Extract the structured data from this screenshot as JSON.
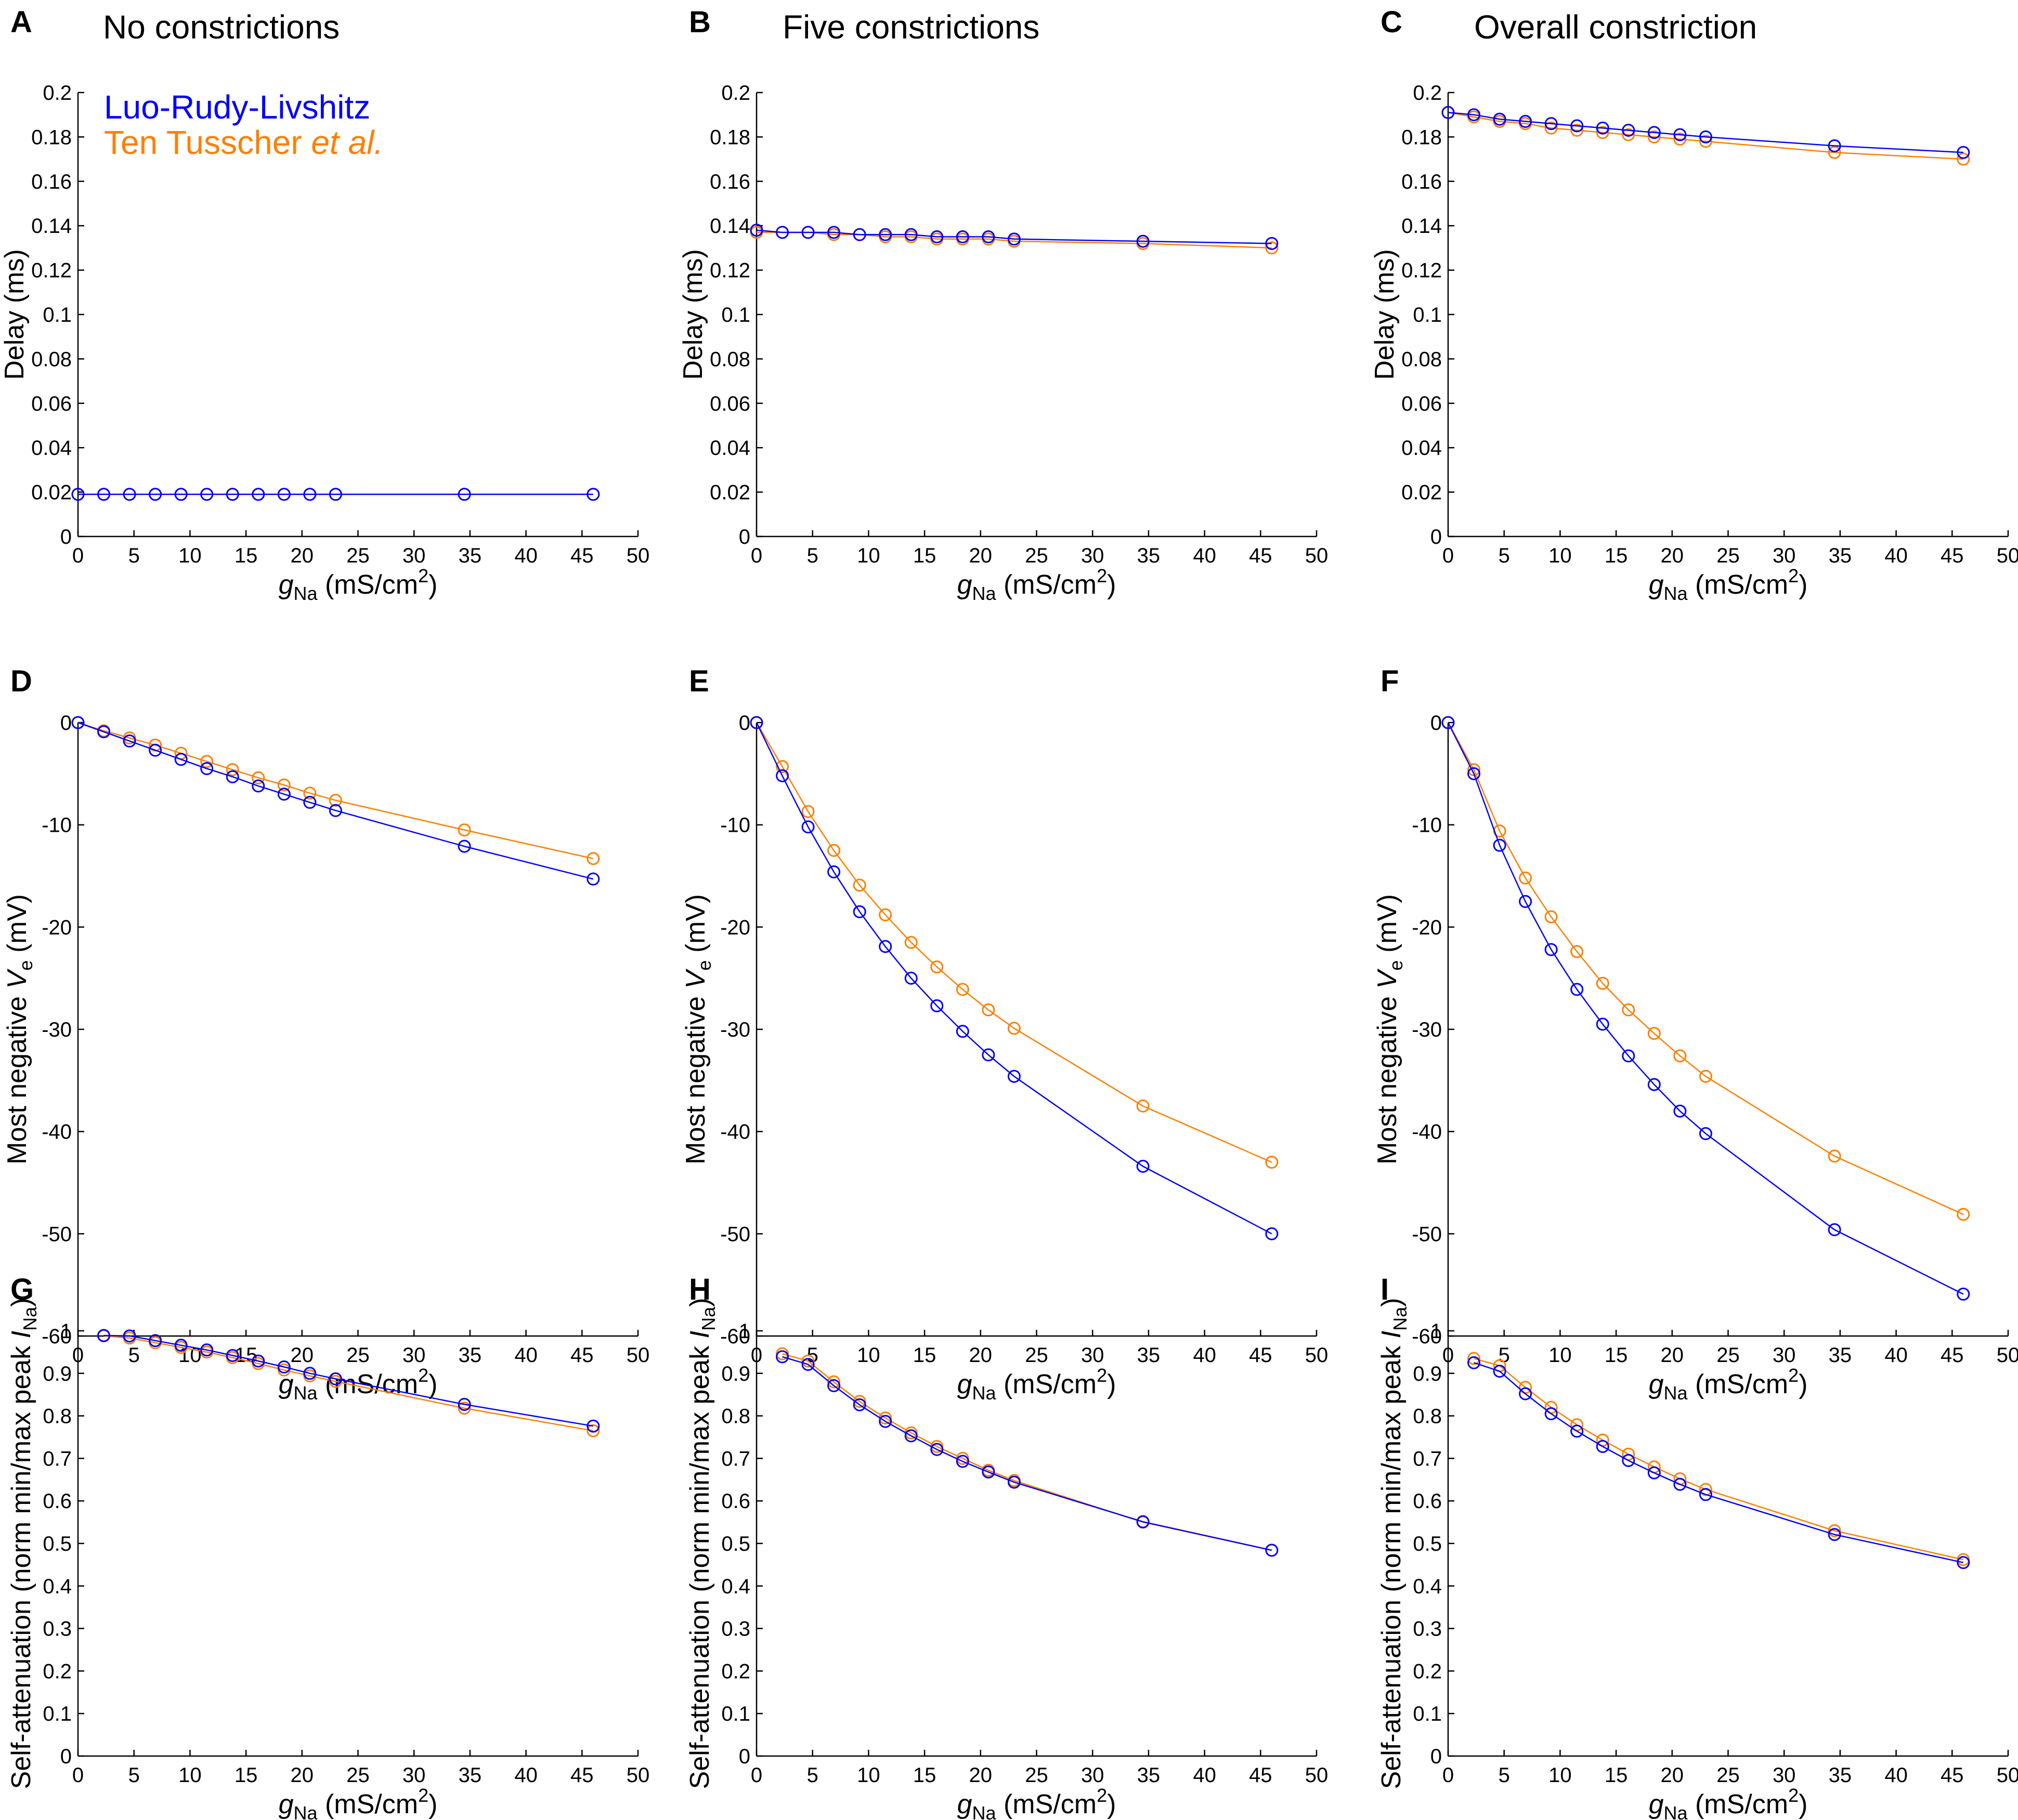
{
  "colors": {
    "lrl": "#0000ff",
    "tt": "#ff7f00",
    "axis": "#000000"
  },
  "legend": {
    "lrl": "Luo-Rudy-Livshitz",
    "tt_prefix": "Ten Tusscher ",
    "tt_suffix": "et al."
  },
  "axis_text": {
    "x_main": "g",
    "x_sub": "Na",
    "x_rest": " (mS/cm",
    "x_sup": "2",
    "x_close": ")",
    "delay": "Delay (ms)",
    "ve_prefix": "Most negative ",
    "ve_var": "V",
    "ve_sub": "e",
    "ve_suffix": " (mV)",
    "sa_prefix": "Self-attenuation (norm min/max peak ",
    "sa_var": "I",
    "sa_sub": "Na",
    "sa_suffix": ")"
  },
  "chart_data": [
    {
      "panel": "A",
      "title": "No constrictions",
      "type": "line",
      "ylabel_kind": "delay",
      "xlim": [
        0,
        50
      ],
      "ylim": [
        0,
        0.2
      ],
      "xticks": [
        "0",
        "5",
        "10",
        "15",
        "20",
        "25",
        "30",
        "35",
        "40",
        "45",
        "50"
      ],
      "yticks": [
        "0",
        "0.02",
        "0.04",
        "0.06",
        "0.08",
        "0.1",
        "0.12",
        "0.14",
        "0.16",
        "0.18",
        "0.2"
      ],
      "x": [
        0,
        2.3,
        4.6,
        6.9,
        9.2,
        11.5,
        13.8,
        16.1,
        18.4,
        20.7,
        23,
        34.5,
        46
      ],
      "series": [
        {
          "name": "Ten Tusscher et al.",
          "color_key": "tt",
          "values": [
            0.019,
            0.019,
            0.019,
            0.019,
            0.019,
            0.019,
            0.019,
            0.019,
            0.019,
            0.019,
            0.019,
            0.019,
            0.019
          ]
        },
        {
          "name": "Luo-Rudy-Livshitz",
          "color_key": "lrl",
          "values": [
            0.019,
            0.019,
            0.019,
            0.019,
            0.019,
            0.019,
            0.019,
            0.019,
            0.019,
            0.019,
            0.019,
            0.019,
            0.019
          ]
        }
      ]
    },
    {
      "panel": "B",
      "title": "Five constrictions",
      "type": "line",
      "ylabel_kind": "delay",
      "xlim": [
        0,
        50
      ],
      "ylim": [
        0,
        0.2
      ],
      "xticks": [
        "0",
        "5",
        "10",
        "15",
        "20",
        "25",
        "30",
        "35",
        "40",
        "45",
        "50"
      ],
      "yticks": [
        "0",
        "0.02",
        "0.04",
        "0.06",
        "0.08",
        "0.1",
        "0.12",
        "0.14",
        "0.16",
        "0.18",
        "0.2"
      ],
      "x": [
        0,
        2.3,
        4.6,
        6.9,
        9.2,
        11.5,
        13.8,
        16.1,
        18.4,
        20.7,
        23,
        34.5,
        46
      ],
      "series": [
        {
          "name": "Ten Tusscher et al.",
          "color_key": "tt",
          "values": [
            0.137,
            0.137,
            0.137,
            0.136,
            0.136,
            0.135,
            0.135,
            0.134,
            0.134,
            0.134,
            0.133,
            0.132,
            0.13
          ]
        },
        {
          "name": "Luo-Rudy-Livshitz",
          "color_key": "lrl",
          "values": [
            0.138,
            0.137,
            0.137,
            0.137,
            0.136,
            0.136,
            0.136,
            0.135,
            0.135,
            0.135,
            0.134,
            0.133,
            0.132
          ]
        }
      ]
    },
    {
      "panel": "C",
      "title": "Overall constriction",
      "type": "line",
      "ylabel_kind": "delay",
      "xlim": [
        0,
        50
      ],
      "ylim": [
        0,
        0.2
      ],
      "xticks": [
        "0",
        "5",
        "10",
        "15",
        "20",
        "25",
        "30",
        "35",
        "40",
        "45",
        "50"
      ],
      "yticks": [
        "0",
        "0.02",
        "0.04",
        "0.06",
        "0.08",
        "0.1",
        "0.12",
        "0.14",
        "0.16",
        "0.18",
        "0.2"
      ],
      "x": [
        0,
        2.3,
        4.6,
        6.9,
        9.2,
        11.5,
        13.8,
        16.1,
        18.4,
        20.7,
        23,
        34.5,
        46
      ],
      "series": [
        {
          "name": "Ten Tusscher et al.",
          "color_key": "tt",
          "values": [
            0.191,
            0.189,
            0.187,
            0.186,
            0.184,
            0.183,
            0.182,
            0.181,
            0.18,
            0.179,
            0.178,
            0.173,
            0.17
          ]
        },
        {
          "name": "Luo-Rudy-Livshitz",
          "color_key": "lrl",
          "values": [
            0.191,
            0.19,
            0.188,
            0.187,
            0.186,
            0.185,
            0.184,
            0.183,
            0.182,
            0.181,
            0.18,
            0.176,
            0.173
          ]
        }
      ]
    },
    {
      "panel": "D",
      "title": "",
      "type": "line",
      "ylabel_kind": "ve",
      "xlim": [
        0,
        50
      ],
      "ylim": [
        -60,
        0
      ],
      "xticks": [
        "0",
        "5",
        "10",
        "15",
        "20",
        "25",
        "30",
        "35",
        "40",
        "45",
        "50"
      ],
      "yticks": [
        "-60",
        "-50",
        "-40",
        "-30",
        "-20",
        "-10",
        "0"
      ],
      "x": [
        0,
        2.3,
        4.6,
        6.9,
        9.2,
        11.5,
        13.8,
        16.1,
        18.4,
        20.7,
        23,
        34.5,
        46
      ],
      "series": [
        {
          "name": "Ten Tusscher et al.",
          "color_key": "tt",
          "values": [
            0,
            -0.8,
            -1.5,
            -2.2,
            -3.0,
            -3.8,
            -4.6,
            -5.4,
            -6.1,
            -6.9,
            -7.6,
            -10.5,
            -13.3
          ]
        },
        {
          "name": "Luo-Rudy-Livshitz",
          "color_key": "lrl",
          "values": [
            0,
            -0.9,
            -1.8,
            -2.7,
            -3.6,
            -4.5,
            -5.3,
            -6.2,
            -7.0,
            -7.8,
            -8.6,
            -12.1,
            -15.3
          ]
        }
      ]
    },
    {
      "panel": "E",
      "title": "",
      "type": "line",
      "ylabel_kind": "ve",
      "xlim": [
        0,
        50
      ],
      "ylim": [
        -60,
        0
      ],
      "xticks": [
        "0",
        "5",
        "10",
        "15",
        "20",
        "25",
        "30",
        "35",
        "40",
        "45",
        "50"
      ],
      "yticks": [
        "-60",
        "-50",
        "-40",
        "-30",
        "-20",
        "-10",
        "0"
      ],
      "x": [
        0,
        2.3,
        4.6,
        6.9,
        9.2,
        11.5,
        13.8,
        16.1,
        18.4,
        20.7,
        23,
        34.5,
        46
      ],
      "series": [
        {
          "name": "Ten Tusscher et al.",
          "color_key": "tt",
          "values": [
            0,
            -4.3,
            -8.7,
            -12.5,
            -15.9,
            -18.8,
            -21.5,
            -23.9,
            -26.1,
            -28.1,
            -29.9,
            -37.5,
            -43.0
          ]
        },
        {
          "name": "Luo-Rudy-Livshitz",
          "color_key": "lrl",
          "values": [
            0,
            -5.2,
            -10.2,
            -14.6,
            -18.5,
            -21.9,
            -25.0,
            -27.7,
            -30.2,
            -32.5,
            -34.6,
            -43.4,
            -50.0
          ]
        }
      ]
    },
    {
      "panel": "F",
      "title": "",
      "type": "line",
      "ylabel_kind": "ve",
      "xlim": [
        0,
        50
      ],
      "ylim": [
        -60,
        0
      ],
      "xticks": [
        "0",
        "5",
        "10",
        "15",
        "20",
        "25",
        "30",
        "35",
        "40",
        "45",
        "50"
      ],
      "yticks": [
        "-60",
        "-50",
        "-40",
        "-30",
        "-20",
        "-10",
        "0"
      ],
      "x": [
        0,
        2.3,
        4.6,
        6.9,
        9.2,
        11.5,
        13.8,
        16.1,
        18.4,
        20.7,
        23,
        34.5,
        46
      ],
      "series": [
        {
          "name": "Ten Tusscher et al.",
          "color_key": "tt",
          "values": [
            0,
            -4.6,
            -10.6,
            -15.2,
            -19.0,
            -22.4,
            -25.5,
            -28.1,
            -30.4,
            -32.6,
            -34.6,
            -42.4,
            -48.1
          ]
        },
        {
          "name": "Luo-Rudy-Livshitz",
          "color_key": "lrl",
          "values": [
            0,
            -5.0,
            -12.0,
            -17.5,
            -22.2,
            -26.1,
            -29.5,
            -32.6,
            -35.4,
            -38.0,
            -40.2,
            -49.6,
            -55.9
          ]
        }
      ]
    },
    {
      "panel": "G",
      "title": "",
      "type": "line",
      "ylabel_kind": "sa",
      "xlim": [
        0,
        50
      ],
      "ylim": [
        0,
        1
      ],
      "xticks": [
        "0",
        "5",
        "10",
        "15",
        "20",
        "25",
        "30",
        "35",
        "40",
        "45",
        "50"
      ],
      "yticks": [
        "0",
        "0.1",
        "0.2",
        "0.3",
        "0.4",
        "0.5",
        "0.6",
        "0.7",
        "0.8",
        "0.9",
        "1"
      ],
      "x": [
        2.3,
        4.6,
        6.9,
        9.2,
        11.5,
        13.8,
        16.1,
        18.4,
        20.7,
        23,
        34.5,
        46
      ],
      "series": [
        {
          "name": "Ten Tusscher et al.",
          "color_key": "tt",
          "values": [
            0.988,
            0.983,
            0.972,
            0.961,
            0.95,
            0.937,
            0.923,
            0.908,
            0.894,
            0.881,
            0.818,
            0.765
          ]
        },
        {
          "name": "Luo-Rudy-Livshitz",
          "color_key": "lrl",
          "values": [
            0.989,
            0.988,
            0.977,
            0.966,
            0.955,
            0.942,
            0.929,
            0.915,
            0.9,
            0.887,
            0.827,
            0.776
          ]
        }
      ]
    },
    {
      "panel": "H",
      "title": "",
      "type": "line",
      "ylabel_kind": "sa",
      "xlim": [
        0,
        50
      ],
      "ylim": [
        0,
        1
      ],
      "xticks": [
        "0",
        "5",
        "10",
        "15",
        "20",
        "25",
        "30",
        "35",
        "40",
        "45",
        "50"
      ],
      "yticks": [
        "0",
        "0.1",
        "0.2",
        "0.3",
        "0.4",
        "0.5",
        "0.6",
        "0.7",
        "0.8",
        "0.9",
        "1"
      ],
      "x": [
        2.3,
        4.6,
        6.9,
        9.2,
        11.5,
        13.8,
        16.1,
        18.4,
        20.7,
        23,
        34.5,
        46
      ],
      "series": [
        {
          "name": "Ten Tusscher et al.",
          "color_key": "tt",
          "values": [
            0.946,
            0.929,
            0.88,
            0.834,
            0.795,
            0.76,
            0.728,
            0.7,
            0.672,
            0.648,
            0.55,
            0.484
          ]
        },
        {
          "name": "Luo-Rudy-Livshitz",
          "color_key": "lrl",
          "values": [
            0.939,
            0.921,
            0.871,
            0.826,
            0.787,
            0.753,
            0.721,
            0.693,
            0.668,
            0.644,
            0.551,
            0.484
          ]
        }
      ]
    },
    {
      "panel": "I",
      "title": "",
      "type": "line",
      "ylabel_kind": "sa",
      "xlim": [
        0,
        50
      ],
      "ylim": [
        0,
        1
      ],
      "xticks": [
        "0",
        "5",
        "10",
        "15",
        "20",
        "25",
        "30",
        "35",
        "40",
        "45",
        "50"
      ],
      "yticks": [
        "0",
        "0.1",
        "0.2",
        "0.3",
        "0.4",
        "0.5",
        "0.6",
        "0.7",
        "0.8",
        "0.9",
        "1"
      ],
      "x": [
        2.3,
        4.6,
        6.9,
        9.2,
        11.5,
        13.8,
        16.1,
        18.4,
        20.7,
        23,
        34.5,
        46
      ],
      "series": [
        {
          "name": "Ten Tusscher et al.",
          "color_key": "tt",
          "values": [
            0.935,
            0.918,
            0.867,
            0.82,
            0.779,
            0.743,
            0.71,
            0.68,
            0.652,
            0.627,
            0.53,
            0.462
          ]
        },
        {
          "name": "Luo-Rudy-Livshitz",
          "color_key": "lrl",
          "values": [
            0.925,
            0.905,
            0.852,
            0.805,
            0.764,
            0.728,
            0.695,
            0.666,
            0.639,
            0.615,
            0.521,
            0.455
          ]
        }
      ]
    }
  ]
}
